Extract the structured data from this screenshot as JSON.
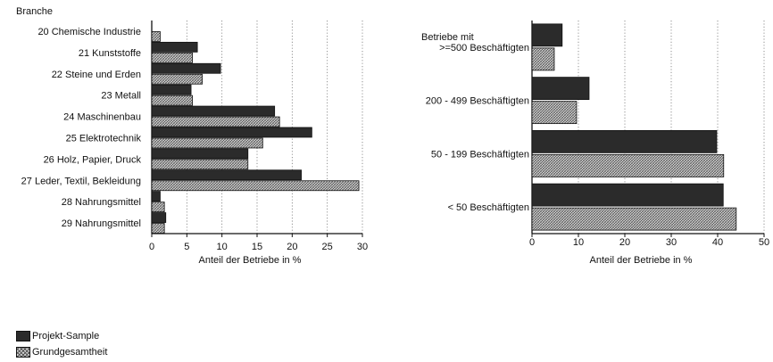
{
  "colors": {
    "project": "#2b2b2b",
    "population_fill": "#d8d8d8",
    "population_hatch": "#555555"
  },
  "legend": {
    "project": "Projekt-Sample",
    "population": "Grundgesamtheit"
  },
  "chart_data": [
    {
      "type": "bar",
      "orientation": "horizontal",
      "category_header": "Branche",
      "categories": [
        "20 Chemische Industrie",
        "21 Kunststoffe",
        "22 Steine und Erden",
        "23 Metall",
        "24 Maschinenbau",
        "25 Elektrotechnik",
        "26 Holz, Papier, Druck",
        "27 Leder, Textil, Bekleidung",
        "28 Nahrungsmittel",
        "29 Nahrungsmittel"
      ],
      "series": [
        {
          "name": "Projekt-Sample",
          "values": [
            0,
            6.5,
            9.8,
            5.6,
            17.5,
            22.8,
            13.7,
            21.3,
            1.2,
            2.0
          ]
        },
        {
          "name": "Grundgesamtheit",
          "values": [
            1.2,
            5.8,
            7.2,
            5.8,
            18.2,
            15.8,
            13.7,
            29.5,
            1.8,
            1.8
          ]
        }
      ],
      "xlabel": "Anteil der Betriebe in %",
      "xticks": [
        0,
        5,
        10,
        15,
        20,
        25,
        30
      ],
      "xlim": [
        0,
        30
      ],
      "grid": "vertical dotted"
    },
    {
      "type": "bar",
      "orientation": "horizontal",
      "category_header": "Betriebe mit",
      "categories": [
        ">=500 Beschäftigten",
        "200 - 499 Beschäftigten",
        "50 - 199 Beschäftigten",
        "< 50 Beschäftigten"
      ],
      "series": [
        {
          "name": "Projekt-Sample",
          "values": [
            6.5,
            12.3,
            39.8,
            41.2
          ]
        },
        {
          "name": "Grundgesamtheit",
          "values": [
            4.8,
            9.6,
            41.3,
            44.0
          ]
        }
      ],
      "xlabel": "Anteil der Betriebe in %",
      "xticks": [
        0,
        10,
        20,
        30,
        40,
        50
      ],
      "xlim": [
        0,
        50
      ],
      "grid": "vertical dotted"
    }
  ]
}
